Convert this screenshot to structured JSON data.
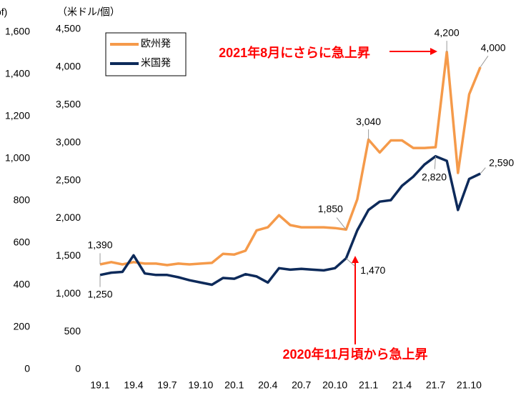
{
  "chart_data": {
    "type": "line",
    "y_label": "（米ドル/個）",
    "y2_label": "of)",
    "categories": [
      "19.1",
      null,
      null,
      "19.4",
      null,
      null,
      "19.7",
      null,
      null,
      "19.10",
      null,
      null,
      "20.1",
      null,
      null,
      "20.4",
      null,
      null,
      "20.7",
      null,
      null,
      "20.10",
      null,
      null,
      "21.1",
      null,
      null,
      "21.4",
      null,
      null,
      "21.7",
      null,
      null,
      "21.10",
      null
    ],
    "series": [
      {
        "name": "欧州発",
        "color": "#f59a4a",
        "values": [
          1390,
          1420,
          1390,
          1420,
          1400,
          1400,
          1380,
          1400,
          1390,
          1400,
          1410,
          1530,
          1520,
          1570,
          1840,
          1880,
          2040,
          1910,
          1880,
          1880,
          1880,
          1870,
          1850,
          2250,
          3040,
          2870,
          3030,
          3030,
          2930,
          2930,
          2940,
          4200,
          2600,
          3640,
          4000
        ],
        "value_labels": [
          "1,390",
          null,
          null,
          null,
          null,
          null,
          null,
          null,
          null,
          null,
          null,
          null,
          null,
          null,
          null,
          null,
          null,
          null,
          null,
          null,
          null,
          null,
          "1,850",
          null,
          "3,040",
          null,
          null,
          null,
          null,
          null,
          null,
          "4,200",
          null,
          null,
          "4,000"
        ]
      },
      {
        "name": "米国発",
        "color": "#0d2a5a",
        "values": [
          1250,
          1280,
          1290,
          1510,
          1270,
          1250,
          1250,
          1220,
          1180,
          1150,
          1120,
          1210,
          1200,
          1260,
          1230,
          1150,
          1340,
          1320,
          1330,
          1320,
          1310,
          1340,
          1470,
          1840,
          2110,
          2220,
          2240,
          2430,
          2550,
          2710,
          2820,
          2760,
          2110,
          2520,
          2590
        ],
        "value_labels": [
          "1,250",
          null,
          null,
          null,
          null,
          null,
          null,
          null,
          null,
          null,
          null,
          null,
          null,
          null,
          null,
          null,
          null,
          null,
          null,
          null,
          null,
          null,
          "1,470",
          null,
          null,
          null,
          null,
          null,
          null,
          null,
          "2,820",
          null,
          null,
          null,
          "2,590"
        ]
      }
    ],
    "ylim": [
      0,
      4500
    ],
    "yticks": [
      0,
      500,
      {
        "value": 1000,
        "label": "1,000"
      },
      {
        "value": 1500,
        "label": "1,500"
      },
      {
        "value": 2000,
        "label": "2,000"
      },
      {
        "value": 2500,
        "label": "2,500"
      },
      {
        "value": 3000,
        "label": "3,000"
      },
      {
        "value": 3500,
        "label": "3,500"
      },
      {
        "value": 4000,
        "label": "4,000"
      },
      {
        "value": 4500,
        "label": "4,500"
      }
    ],
    "y2lim": [
      0,
      1600
    ],
    "y2ticks": [
      0,
      200,
      400,
      600,
      800,
      {
        "value": 1000,
        "label": "1,000"
      },
      {
        "value": 1200,
        "label": "1,200"
      },
      {
        "value": 1400,
        "label": "1,400"
      },
      {
        "value": 1600,
        "label": "1,600"
      }
    ],
    "legend": "upper left",
    "annotations": [
      {
        "text": "2021年8月にさらに急上昇"
      },
      {
        "text": "2020年11月頃から急上昇"
      }
    ]
  }
}
